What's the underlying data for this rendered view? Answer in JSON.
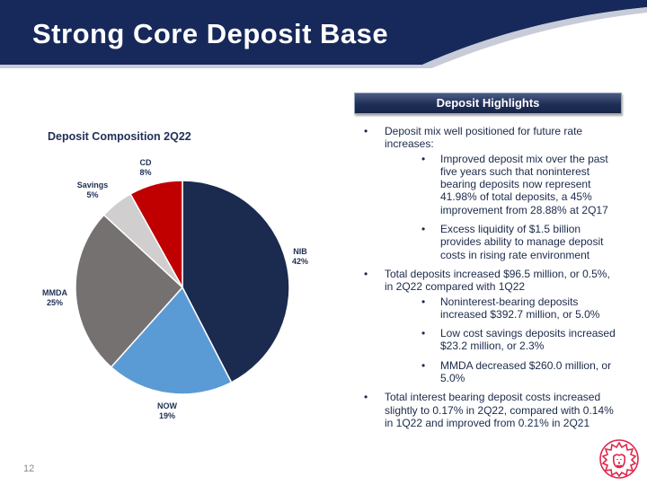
{
  "title": "Strong Core Deposit Base",
  "page_number": "12",
  "colors": {
    "header": "#17295a",
    "accent_red": "#c00000",
    "navy": "#1b2a4a"
  },
  "logo": {
    "icon": "lion-head-logo-icon",
    "color": "#e0264b"
  },
  "highlights": {
    "header": "Deposit Highlights",
    "bullets": [
      {
        "text": "Deposit mix well positioned for future rate increases:",
        "subs": [
          "Improved deposit mix over the past five years such that noninterest bearing deposits now represent 41.98% of total deposits, a 45% improvement from 28.88% at 2Q17",
          "Excess liquidity of $1.5 billion provides ability to manage deposit costs in rising rate environment"
        ]
      },
      {
        "text": "Total deposits increased $96.5 million, or 0.5%, in 2Q22 compared with 1Q22",
        "subs": [
          "Noninterest-bearing deposits increased $392.7 million, or 5.0%",
          "Low cost savings deposits increased $23.2 million, or 2.3%",
          "MMDA decreased $260.0 million, or 5.0%"
        ]
      },
      {
        "text": "Total interest bearing deposit costs increased slightly to 0.17% in 2Q22, compared with 0.14% in 1Q22 and improved from 0.21% in 2Q21",
        "subs": []
      }
    ]
  },
  "chart_data": {
    "type": "pie",
    "title": "Deposit Composition 2Q22",
    "categories": [
      "NIB",
      "NOW",
      "MMDA",
      "Savings",
      "CD"
    ],
    "values": [
      42,
      19,
      25,
      5,
      8
    ],
    "labels": [
      "42%",
      "19%",
      "25%",
      "5%",
      "8%"
    ],
    "colors": [
      "#1b2a4f",
      "#5b9bd5",
      "#767171",
      "#d0cece",
      "#c00000"
    ]
  }
}
